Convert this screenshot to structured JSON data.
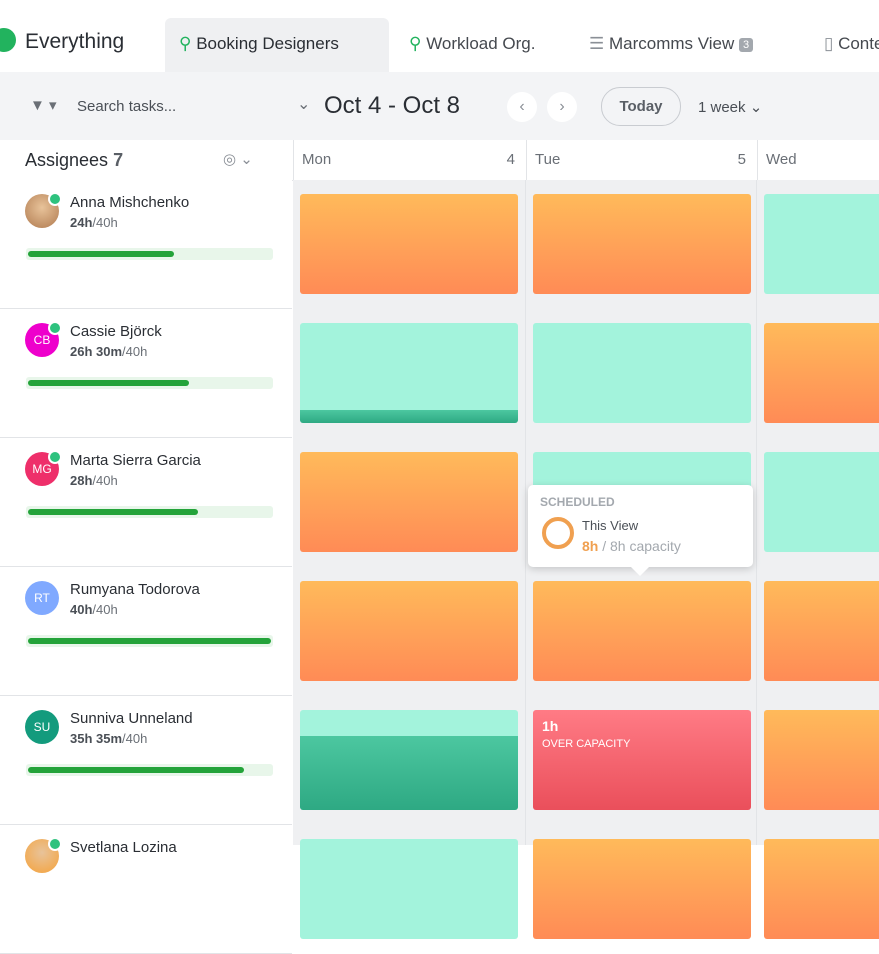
{
  "header": {
    "space": "Everything",
    "tabs": [
      "Booking Designers",
      "Workload Org.",
      "Marcomms View",
      "Content"
    ],
    "tab_badge": "3"
  },
  "toolbar": {
    "search": "Search tasks...",
    "range": "Oct 4 - Oct 8",
    "today": "Today",
    "period": "1 week"
  },
  "columns": {
    "assignees": "Assignees",
    "count": "7",
    "days": [
      {
        "name": "Mon",
        "date": "4"
      },
      {
        "name": "Tue",
        "date": "5"
      },
      {
        "name": "Wed",
        "date": ""
      }
    ]
  },
  "rows": [
    {
      "name": "Anna Mishchenko",
      "initials": null,
      "avatar": "#b07a4f",
      "online": true,
      "used": "24h",
      "total": "/40h",
      "cells": [
        "orange",
        "orange",
        "mint"
      ]
    },
    {
      "name": "Cassie Björck",
      "initials": "CB",
      "avatar": "#ee00cc",
      "online": true,
      "used": "26h 30m",
      "total": "/40h",
      "cells": [
        "mint-strip",
        "mint",
        "orange"
      ]
    },
    {
      "name": "Marta Sierra Garcia",
      "initials": "MG",
      "avatar": "#ee2f6a",
      "online": true,
      "used": "28h",
      "total": "/40h",
      "cells": [
        "orange",
        "mint",
        "mint"
      ]
    },
    {
      "name": "Rumyana Todorova",
      "initials": "RT",
      "avatar": "#80a9ff",
      "online": false,
      "used": "40h",
      "total": "/40h",
      "cells": [
        "orange",
        "orange",
        "orange"
      ]
    },
    {
      "name": "Sunniva Unneland",
      "initials": "SU",
      "avatar": "#139b7d",
      "online": false,
      "used": "35h 35m",
      "total": "/40h",
      "cells": [
        "teal",
        {
          "style": "red",
          "label": "1h",
          "note": "OVER CAPACITY"
        },
        "orange"
      ]
    },
    {
      "name": "Svetlana Lozina",
      "initials": null,
      "avatar": "#f5a23a",
      "online": true,
      "used": "",
      "total": "",
      "cells": [
        "mint",
        "orange",
        "orange"
      ]
    }
  ],
  "tooltip": {
    "heading": "SCHEDULED",
    "label": "This View",
    "used": "8h",
    "separator": "/",
    "capacity": "8h capacity"
  }
}
